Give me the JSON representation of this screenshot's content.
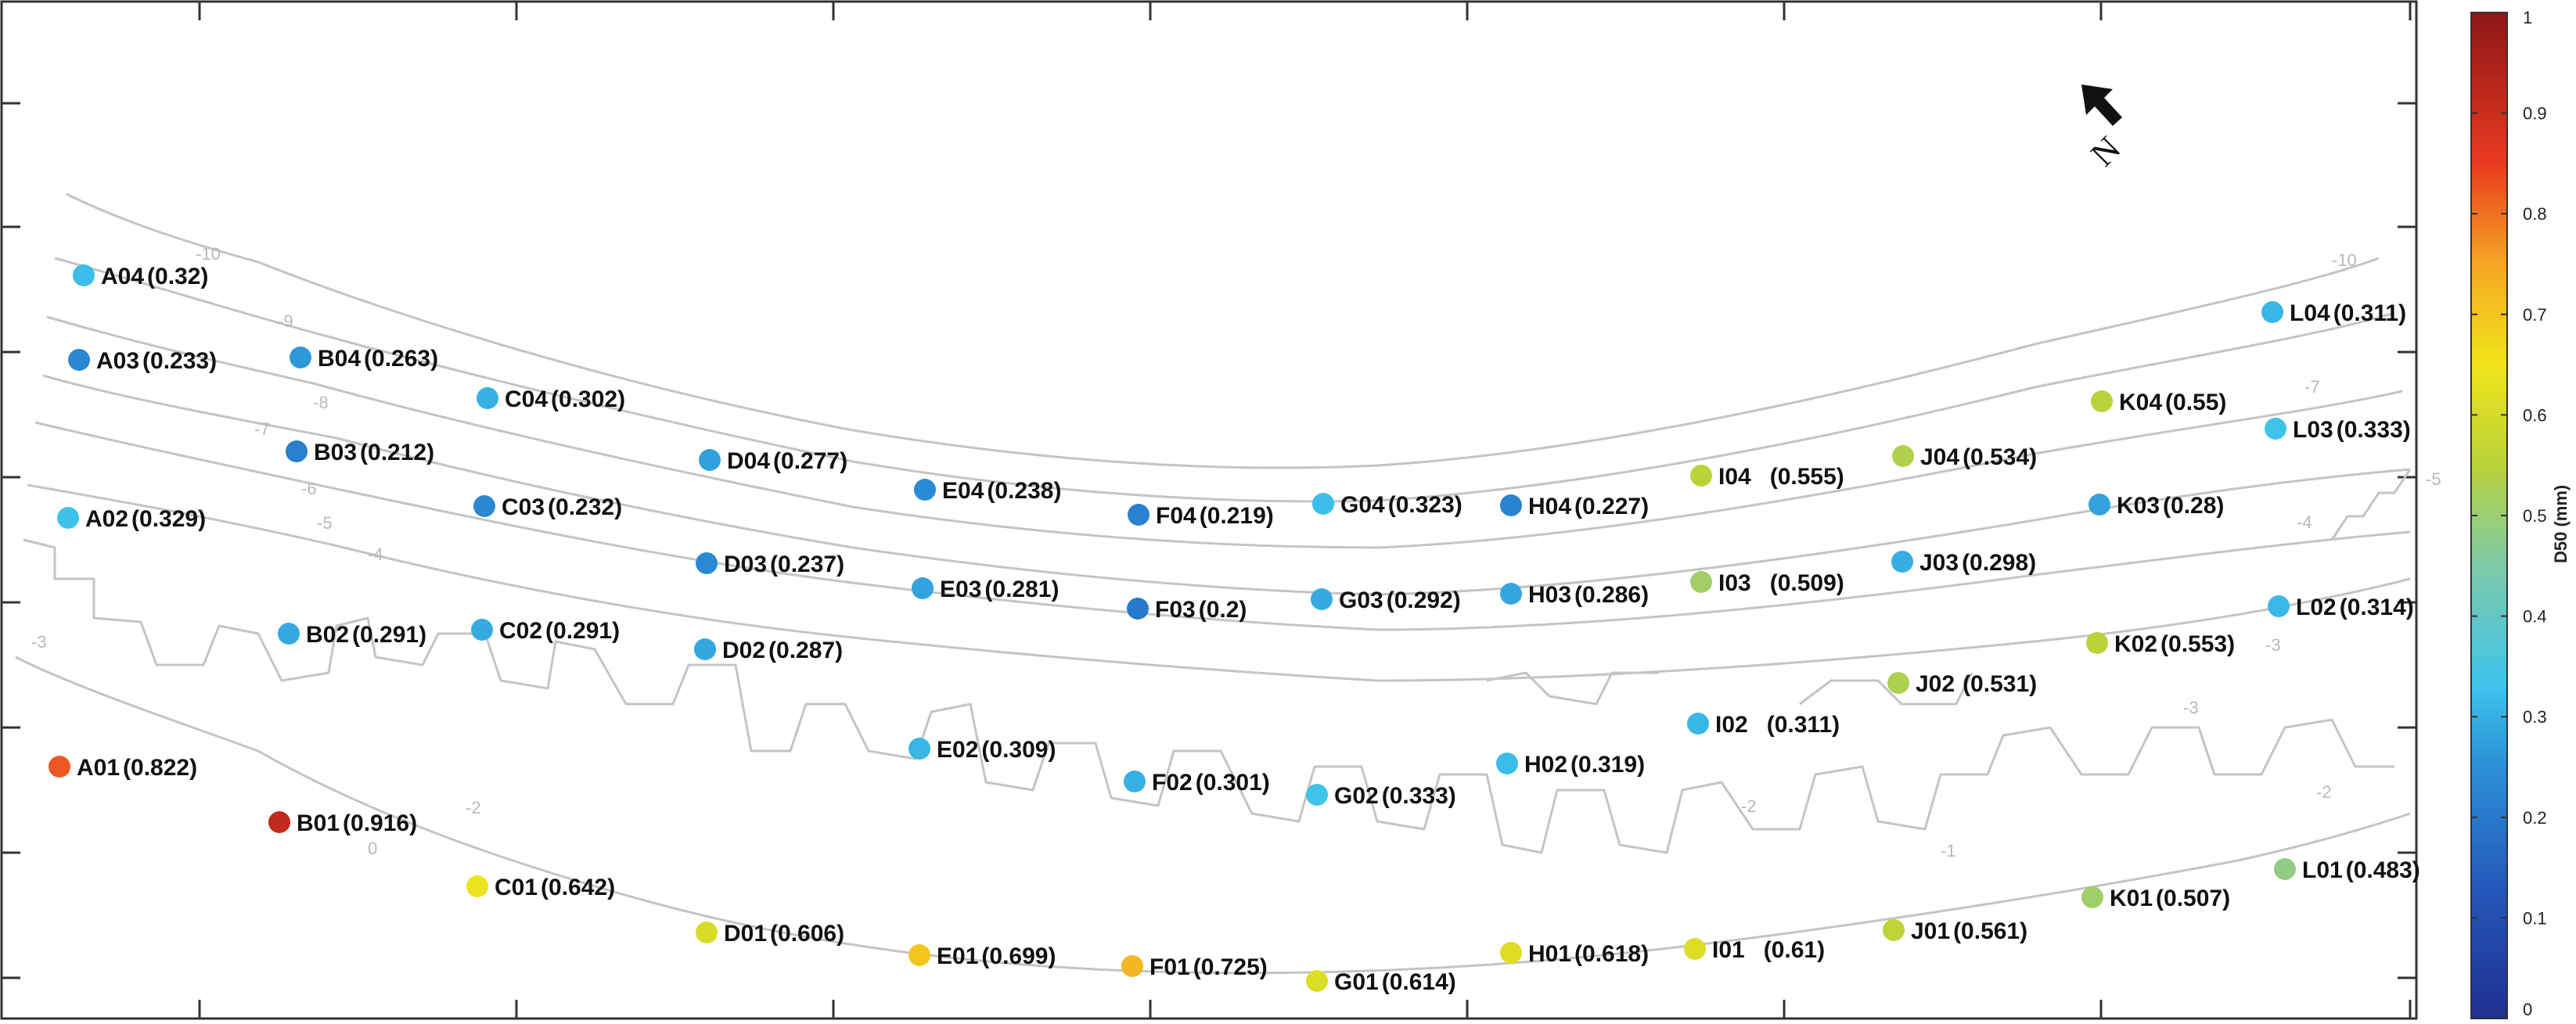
{
  "colorbar": {
    "title": "D50 (mm)",
    "min": 0,
    "max": 1,
    "ticks": [
      "0",
      "0.1",
      "0.2",
      "0.3",
      "0.4",
      "0.5",
      "0.6",
      "0.7",
      "0.8",
      "0.9",
      "1"
    ]
  },
  "north_arrow": {
    "letter": "N"
  },
  "contour_labels": [
    "-10",
    "-9",
    "-8",
    "-7",
    "-6",
    "-5",
    "-4",
    "-3",
    "-2",
    "0",
    "-10",
    "-7",
    "-5",
    "-4",
    "-3",
    "-3",
    "-2",
    "-1",
    "-2"
  ],
  "samples": [
    {
      "id": "A04",
      "value_text": "(0.32)",
      "value": 0.32
    },
    {
      "id": "A03",
      "value_text": "(0.233)",
      "value": 0.233
    },
    {
      "id": "A02",
      "value_text": "(0.329)",
      "value": 0.329
    },
    {
      "id": "A01",
      "value_text": "(0.822)",
      "value": 0.822
    },
    {
      "id": "B04",
      "value_text": "(0.263)",
      "value": 0.263
    },
    {
      "id": "B03",
      "value_text": "(0.212)",
      "value": 0.212
    },
    {
      "id": "B02",
      "value_text": "(0.291)",
      "value": 0.291
    },
    {
      "id": "B01",
      "value_text": "(0.916)",
      "value": 0.916
    },
    {
      "id": "C04",
      "value_text": "(0.302)",
      "value": 0.302
    },
    {
      "id": "C03",
      "value_text": "(0.232)",
      "value": 0.232
    },
    {
      "id": "C02",
      "value_text": "(0.291)",
      "value": 0.291
    },
    {
      "id": "C01",
      "value_text": "(0.642)",
      "value": 0.642
    },
    {
      "id": "D04",
      "value_text": "(0.277)",
      "value": 0.277
    },
    {
      "id": "D03",
      "value_text": "(0.237)",
      "value": 0.237
    },
    {
      "id": "D02",
      "value_text": "(0.287)",
      "value": 0.287
    },
    {
      "id": "D01",
      "value_text": "(0.606)",
      "value": 0.606
    },
    {
      "id": "E04",
      "value_text": "(0.238)",
      "value": 0.238
    },
    {
      "id": "E03",
      "value_text": "(0.281)",
      "value": 0.281
    },
    {
      "id": "E02",
      "value_text": "(0.309)",
      "value": 0.309
    },
    {
      "id": "E01",
      "value_text": "(0.699)",
      "value": 0.699
    },
    {
      "id": "F04",
      "value_text": "(0.219)",
      "value": 0.219
    },
    {
      "id": "F03",
      "value_text": "(0.2)",
      "value": 0.2
    },
    {
      "id": "F02",
      "value_text": "(0.301)",
      "value": 0.301
    },
    {
      "id": "F01",
      "value_text": "(0.725)",
      "value": 0.725
    },
    {
      "id": "G04",
      "value_text": "(0.323)",
      "value": 0.323
    },
    {
      "id": "G03",
      "value_text": "(0.292)",
      "value": 0.292
    },
    {
      "id": "G02",
      "value_text": "(0.333)",
      "value": 0.333
    },
    {
      "id": "G01",
      "value_text": "(0.614)",
      "value": 0.614
    },
    {
      "id": "H04",
      "value_text": "(0.227)",
      "value": 0.227
    },
    {
      "id": "H03",
      "value_text": "(0.286)",
      "value": 0.286
    },
    {
      "id": "H02",
      "value_text": "(0.319)",
      "value": 0.319
    },
    {
      "id": "H01",
      "value_text": "(0.618)",
      "value": 0.618
    },
    {
      "id": "I04",
      "value_text": "(0.555)",
      "value": 0.555
    },
    {
      "id": "I03",
      "value_text": "(0.509)",
      "value": 0.509
    },
    {
      "id": "I02",
      "value_text": "(0.311)",
      "value": 0.311
    },
    {
      "id": "I01",
      "value_text": "(0.61)",
      "value": 0.61
    },
    {
      "id": "J04",
      "value_text": "(0.534)",
      "value": 0.534
    },
    {
      "id": "J03",
      "value_text": "(0.298)",
      "value": 0.298
    },
    {
      "id": "J02",
      "value_text": "(0.531)",
      "value": 0.531
    },
    {
      "id": "J01",
      "value_text": "(0.561)",
      "value": 0.561
    },
    {
      "id": "K04",
      "value_text": "(0.55)",
      "value": 0.55
    },
    {
      "id": "K03",
      "value_text": "(0.28)",
      "value": 0.28
    },
    {
      "id": "K02",
      "value_text": "(0.553)",
      "value": 0.553
    },
    {
      "id": "K01",
      "value_text": "(0.507)",
      "value": 0.507
    },
    {
      "id": "L04",
      "value_text": "(0.311)",
      "value": 0.311
    },
    {
      "id": "L03",
      "value_text": "(0.333)",
      "value": 0.333
    },
    {
      "id": "L02",
      "value_text": "(0.314)",
      "value": 0.314
    },
    {
      "id": "L01",
      "value_text": "(0.483)",
      "value": 0.483
    }
  ]
}
